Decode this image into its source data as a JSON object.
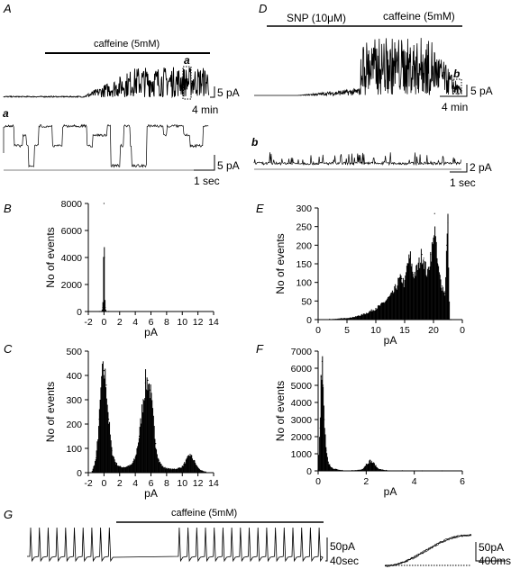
{
  "panel_labels": {
    "A": "A",
    "a": "a",
    "B": "B",
    "C": "C",
    "D": "D",
    "b": "b",
    "E": "E",
    "F": "F",
    "G": "G"
  },
  "traces": {
    "A": {
      "bar_label": "caffeine (5mM)",
      "inset_label": "a",
      "scale_y": "5 pA",
      "scale_x": "4 min"
    },
    "a": {
      "scale_y": "5 pA",
      "scale_x": "1 sec"
    },
    "D": {
      "bar1_label": "SNP (10μM)",
      "bar2_label": "caffeine (5mM)",
      "inset_label": "b",
      "scale_y": "5 pA",
      "scale_x": "4 min"
    },
    "b": {
      "scale_y": "2 pA",
      "scale_x": "1 sec"
    },
    "G": {
      "bar_label": "caffeine (5mM)",
      "scale_y": "50pA",
      "scale_x": "40sec",
      "inset_scale_y": "50pA",
      "inset_scale_x": "400ms"
    }
  },
  "chart_data": [
    {
      "id": "B",
      "type": "area",
      "xlabel": "pA",
      "ylabel": "No of events",
      "xticks": [
        "-2",
        "0",
        "2",
        "4",
        "6",
        "8",
        "10",
        "12",
        "14"
      ],
      "xlim": [
        -2,
        14
      ],
      "yticks": [
        "0",
        "2000",
        "4000",
        "6000",
        "8000"
      ],
      "ylim": [
        0,
        8000
      ],
      "x": [
        -0.6,
        -0.3,
        -0.15,
        -0.05,
        0,
        0.05,
        0.15,
        0.3,
        0.6
      ],
      "values": [
        0,
        0,
        300,
        4000,
        8000,
        4000,
        300,
        0,
        0
      ]
    },
    {
      "id": "C",
      "type": "area",
      "xlabel": "pA",
      "ylabel": "No of events",
      "xticks": [
        "-2",
        "0",
        "2",
        "4",
        "6",
        "8",
        "10",
        "12",
        "14"
      ],
      "xlim": [
        -2,
        14
      ],
      "yticks": [
        "0",
        "100",
        "200",
        "300",
        "400",
        "500"
      ],
      "ylim": [
        0,
        500
      ],
      "x": [
        -1.5,
        -1,
        -0.6,
        -0.3,
        0,
        0.3,
        0.6,
        1,
        1.5,
        2,
        2.5,
        3,
        3.5,
        4,
        4.5,
        5,
        5.3,
        5.6,
        5.9,
        6.2,
        6.6,
        7,
        7.5,
        8,
        8.5,
        9,
        9.5,
        10,
        10.5,
        11,
        11.5,
        12,
        12.5,
        13
      ],
      "values": [
        5,
        60,
        220,
        390,
        420,
        360,
        220,
        90,
        40,
        25,
        22,
        25,
        32,
        60,
        150,
        300,
        370,
        380,
        340,
        250,
        120,
        50,
        25,
        18,
        15,
        15,
        18,
        25,
        50,
        75,
        50,
        20,
        8,
        3
      ]
    },
    {
      "id": "E",
      "type": "area",
      "xlabel": "pA",
      "ylabel": "No of events",
      "xticks": [
        "0",
        "5",
        "10",
        "15",
        "20",
        "0"
      ],
      "xlim": [
        0,
        25
      ],
      "yticks": [
        "0",
        "50",
        "100",
        "150",
        "200",
        "250",
        "300"
      ],
      "ylim": [
        0,
        300
      ],
      "x": [
        0,
        2,
        4,
        6,
        7,
        8,
        9,
        10,
        11,
        12,
        13,
        14,
        14.5,
        15,
        15.5,
        16,
        16.5,
        17,
        17.5,
        18,
        18.3,
        18.6,
        19,
        19.5,
        20,
        20.2,
        20.4,
        20.7,
        21,
        21.5,
        22,
        22.3,
        22.5,
        22.8,
        23
      ],
      "values": [
        0,
        1,
        3,
        6,
        10,
        15,
        22,
        30,
        40,
        55,
        70,
        105,
        110,
        95,
        150,
        165,
        120,
        130,
        150,
        175,
        165,
        140,
        120,
        175,
        205,
        285,
        200,
        150,
        120,
        90,
        70,
        200,
        260,
        0,
        0
      ]
    },
    {
      "id": "F",
      "type": "area",
      "xlabel": "pA",
      "ylabel": "No of events",
      "xticks": [
        "0",
        "2",
        "4",
        "6"
      ],
      "xlim": [
        -0.2,
        7
      ],
      "yticks": [
        "0",
        "1000",
        "2000",
        "3000",
        "4000",
        "5000",
        "6000",
        "7000"
      ],
      "ylim": [
        0,
        7000
      ],
      "x": [
        -0.2,
        -0.1,
        -0.05,
        0,
        0.05,
        0.1,
        0.2,
        0.3,
        0.5,
        1,
        1.5,
        2,
        2.2,
        2.4,
        2.6,
        2.8,
        3.2,
        4,
        5,
        6
      ],
      "values": [
        100,
        2500,
        5500,
        6400,
        5000,
        3000,
        1200,
        500,
        150,
        30,
        20,
        80,
        380,
        600,
        420,
        120,
        30,
        5,
        0,
        0
      ]
    }
  ]
}
